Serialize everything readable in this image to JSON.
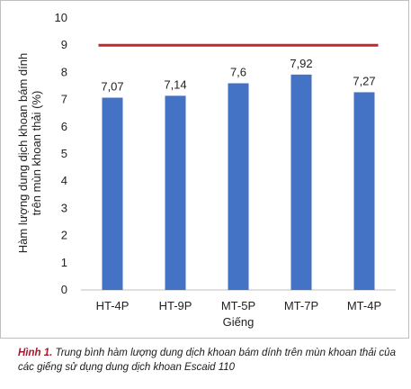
{
  "chart_data": {
    "type": "bar",
    "categories": [
      "HT-4P",
      "HT-9P",
      "MT-5P",
      "MT-7P",
      "MT-4P"
    ],
    "values": [
      7.07,
      7.14,
      7.6,
      7.92,
      7.27
    ],
    "value_labels": [
      "7,07",
      "7,14",
      "7,6",
      "7,92",
      "7,27"
    ],
    "xlabel": "Giếng",
    "ylabel_lines": [
      "Hàm lượng dung dịch khoan bám dính",
      "trên mùn khoan thải (%)"
    ],
    "ylim": [
      0,
      10
    ],
    "yticks": [
      0,
      1,
      2,
      3,
      4,
      5,
      6,
      7,
      8,
      9,
      10
    ],
    "reference_line": 9,
    "bar_color": "#4472c4",
    "reference_line_color": "#c0282d",
    "grid": false
  },
  "caption": {
    "label": "Hình 1.",
    "text": " Trung bình hàm lượng dung dịch khoan bám dính trên mùn khoan thải của các giếng sử dụng dung dịch khoan Escaid 110"
  }
}
